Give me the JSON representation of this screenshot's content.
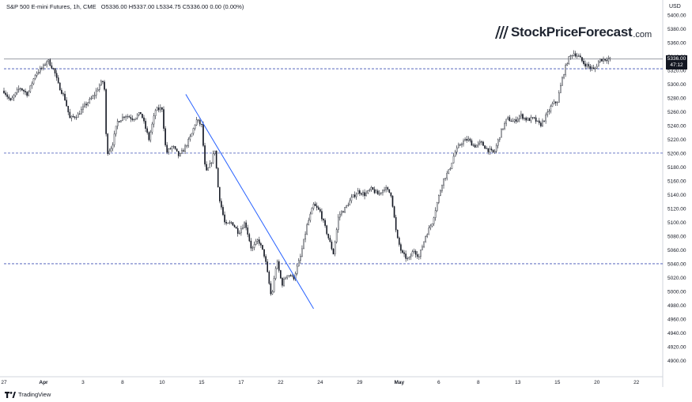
{
  "header": {
    "title": "S&P 500 E-mini Futures, 1h, CME",
    "ohlc": "O5336.00 H5337.00 L5334.75 C5336.00 0.00 (0.00%)"
  },
  "logo": {
    "main": "StockPriceForecast",
    "suffix": ".com"
  },
  "footer": {
    "brand": "TradingView"
  },
  "axis": {
    "currency": "USD"
  },
  "last_price": {
    "price": "5336.00",
    "countdown": "47:12"
  },
  "colors": {
    "candles": "#131722",
    "trendline": "#2962ff",
    "levels": "#3f51b5",
    "last_price_line": "#787b86"
  },
  "chart_data": {
    "type": "candlestick",
    "ylim": [
      4880,
      5410
    ],
    "y_ticks": [
      5400,
      5380,
      5360,
      5340,
      5320,
      5300,
      5280,
      5260,
      5240,
      5220,
      5200,
      5180,
      5160,
      5140,
      5120,
      5100,
      5080,
      5060,
      5040,
      5020,
      5000,
      4980,
      4960,
      4940,
      4920,
      4900
    ],
    "y_tick_labels": [
      "5400.00",
      "5380.00",
      "5360.00",
      "5340.00",
      "5320.00",
      "5300.00",
      "5280.00",
      "5260.00",
      "5240.00",
      "5220.00",
      "5200.00",
      "5180.00",
      "5160.00",
      "5140.00",
      "5120.00",
      "5100.00",
      "5080.00",
      "5060.00",
      "5040.00",
      "5020.00",
      "5000.00",
      "4980.00",
      "4960.00",
      "4940.00",
      "4920.00",
      "4900.00"
    ],
    "x_tick_labels": [
      "27",
      "Apr",
      "3",
      "8",
      "10",
      "15",
      "17",
      "22",
      "24",
      "29",
      "May",
      "6",
      "8",
      "13",
      "15",
      "20",
      "22"
    ],
    "x_tick_bold": [
      false,
      true,
      false,
      false,
      false,
      false,
      false,
      false,
      false,
      false,
      true,
      false,
      false,
      false,
      false,
      false,
      false
    ],
    "x_tick_index": [
      0,
      3,
      6,
      9,
      12,
      15,
      18,
      21,
      24,
      27,
      30,
      33,
      36,
      39,
      42,
      45,
      48
    ],
    "x_range": [
      0,
      50
    ],
    "close_path": [
      [
        0,
        5290
      ],
      [
        0.5,
        5275
      ],
      [
        1.2,
        5295
      ],
      [
        1.8,
        5285
      ],
      [
        2.4,
        5315
      ],
      [
        3.0,
        5325
      ],
      [
        3.3,
        5335
      ],
      [
        3.8,
        5320
      ],
      [
        4.1,
        5300
      ],
      [
        4.6,
        5280
      ],
      [
        5.0,
        5250
      ],
      [
        5.6,
        5255
      ],
      [
        6.2,
        5270
      ],
      [
        6.8,
        5282
      ],
      [
        7.3,
        5300
      ],
      [
        7.6,
        5305
      ],
      [
        7.8,
        5200
      ],
      [
        8.2,
        5210
      ],
      [
        8.6,
        5245
      ],
      [
        9.2,
        5255
      ],
      [
        9.8,
        5250
      ],
      [
        10.4,
        5258
      ],
      [
        11.0,
        5220
      ],
      [
        11.5,
        5262
      ],
      [
        12.0,
        5265
      ],
      [
        12.3,
        5200
      ],
      [
        12.8,
        5210
      ],
      [
        13.3,
        5195
      ],
      [
        13.8,
        5210
      ],
      [
        14.2,
        5225
      ],
      [
        14.6,
        5248
      ],
      [
        15.0,
        5240
      ],
      [
        15.3,
        5170
      ],
      [
        15.7,
        5185
      ],
      [
        16.0,
        5205
      ],
      [
        16.3,
        5140
      ],
      [
        16.8,
        5095
      ],
      [
        17.3,
        5100
      ],
      [
        17.8,
        5085
      ],
      [
        18.3,
        5100
      ],
      [
        18.8,
        5060
      ],
      [
        19.3,
        5075
      ],
      [
        19.8,
        5050
      ],
      [
        20.3,
        4990
      ],
      [
        20.7,
        5045
      ],
      [
        21.1,
        5010
      ],
      [
        21.5,
        5025
      ],
      [
        22.0,
        5020
      ],
      [
        22.5,
        5050
      ],
      [
        23.0,
        5095
      ],
      [
        23.5,
        5125
      ],
      [
        24.0,
        5115
      ],
      [
        24.5,
        5085
      ],
      [
        25.0,
        5055
      ],
      [
        25.4,
        5110
      ],
      [
        25.9,
        5120
      ],
      [
        26.4,
        5135
      ],
      [
        26.9,
        5145
      ],
      [
        27.4,
        5140
      ],
      [
        27.9,
        5148
      ],
      [
        28.4,
        5140
      ],
      [
        28.9,
        5150
      ],
      [
        29.4,
        5140
      ],
      [
        29.8,
        5080
      ],
      [
        30.2,
        5055
      ],
      [
        30.7,
        5045
      ],
      [
        31.1,
        5060
      ],
      [
        31.5,
        5050
      ],
      [
        32.0,
        5080
      ],
      [
        32.5,
        5100
      ],
      [
        32.9,
        5130
      ],
      [
        33.3,
        5160
      ],
      [
        33.8,
        5175
      ],
      [
        34.2,
        5200
      ],
      [
        34.7,
        5215
      ],
      [
        35.2,
        5220
      ],
      [
        35.7,
        5210
      ],
      [
        36.2,
        5215
      ],
      [
        36.7,
        5205
      ],
      [
        37.2,
        5200
      ],
      [
        37.7,
        5230
      ],
      [
        38.2,
        5250
      ],
      [
        38.7,
        5245
      ],
      [
        39.2,
        5255
      ],
      [
        39.7,
        5248
      ],
      [
        40.2,
        5250
      ],
      [
        40.7,
        5240
      ],
      [
        41.2,
        5255
      ],
      [
        41.6,
        5270
      ],
      [
        42.0,
        5275
      ],
      [
        42.4,
        5310
      ],
      [
        42.8,
        5335
      ],
      [
        43.2,
        5345
      ],
      [
        43.6,
        5340
      ],
      [
        44.0,
        5330
      ],
      [
        44.4,
        5325
      ],
      [
        44.8,
        5320
      ],
      [
        45.2,
        5335
      ],
      [
        45.6,
        5336
      ],
      [
        46.0,
        5336
      ]
    ],
    "horizontal_levels": [
      5322,
      5200,
      5040
    ],
    "last_price_level": 5336,
    "trendline": {
      "from": [
        13.8,
        5285
      ],
      "to": [
        23.5,
        4975
      ]
    }
  }
}
